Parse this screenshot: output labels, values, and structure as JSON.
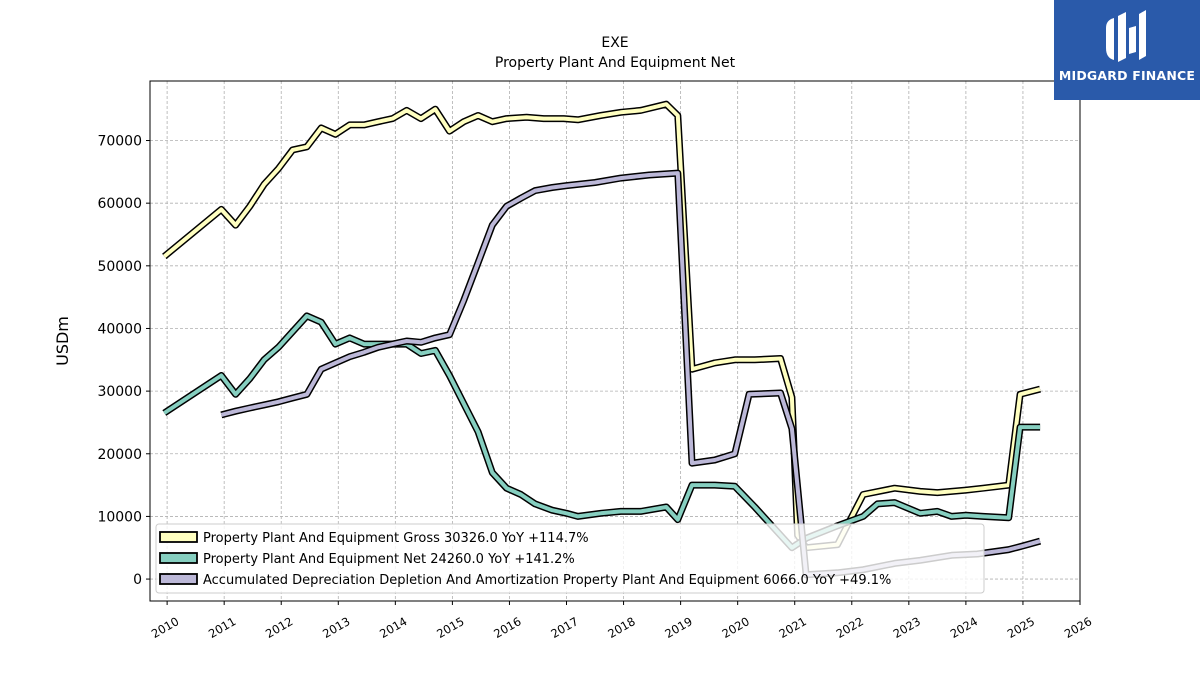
{
  "brand": {
    "name": "MIDGARD FINANCE",
    "bg": "#2a5aaa"
  },
  "chart_data": {
    "type": "line",
    "title": "EXE",
    "subtitle": "Property Plant And Equipment Net",
    "ylabel": "USDm",
    "xlabel": "",
    "xlim": [
      2009.7,
      2026.0
    ],
    "ylim": [
      -3500,
      79500
    ],
    "x_ticks": [
      "2010",
      "2011",
      "2012",
      "2013",
      "2014",
      "2015",
      "2016",
      "2017",
      "2018",
      "2019",
      "2020",
      "2021",
      "2022",
      "2023",
      "2024",
      "2025",
      "2026"
    ],
    "y_ticks": [
      0,
      10000,
      20000,
      30000,
      40000,
      50000,
      60000,
      70000
    ],
    "grid": true,
    "legend_position": "lower-left",
    "series": [
      {
        "name": "Property Plant And Equipment Gross",
        "legend_label": "Property Plant And Equipment Gross  30326.0 YoY +114.7%",
        "color": "#ffffc0",
        "points": [
          [
            2009.95,
            51500
          ],
          [
            2010.95,
            59000
          ],
          [
            2011.2,
            56500
          ],
          [
            2011.45,
            59500
          ],
          [
            2011.7,
            63000
          ],
          [
            2011.95,
            65500
          ],
          [
            2012.2,
            68500
          ],
          [
            2012.45,
            69000
          ],
          [
            2012.7,
            72000
          ],
          [
            2012.95,
            71000
          ],
          [
            2013.2,
            72500
          ],
          [
            2013.45,
            72500
          ],
          [
            2013.7,
            73000
          ],
          [
            2013.95,
            73500
          ],
          [
            2014.2,
            74800
          ],
          [
            2014.45,
            73500
          ],
          [
            2014.7,
            75000
          ],
          [
            2014.95,
            71500
          ],
          [
            2015.2,
            73000
          ],
          [
            2015.45,
            74000
          ],
          [
            2015.7,
            73000
          ],
          [
            2015.95,
            73500
          ],
          [
            2016.3,
            73700
          ],
          [
            2016.6,
            73500
          ],
          [
            2016.95,
            73500
          ],
          [
            2017.2,
            73300
          ],
          [
            2017.6,
            74000
          ],
          [
            2017.95,
            74500
          ],
          [
            2018.3,
            74800
          ],
          [
            2018.75,
            75800
          ],
          [
            2018.95,
            74000
          ],
          [
            2019.2,
            33500
          ],
          [
            2019.6,
            34500
          ],
          [
            2019.95,
            35000
          ],
          [
            2020.3,
            35000
          ],
          [
            2020.75,
            35200
          ],
          [
            2020.95,
            29000
          ],
          [
            2021.05,
            7000
          ],
          [
            2021.2,
            5000
          ],
          [
            2021.75,
            5500
          ],
          [
            2022.2,
            13500
          ],
          [
            2022.75,
            14500
          ],
          [
            2023.2,
            14000
          ],
          [
            2023.5,
            13800
          ],
          [
            2023.75,
            14000
          ],
          [
            2024.0,
            14200
          ],
          [
            2024.3,
            14500
          ],
          [
            2024.75,
            15000
          ],
          [
            2024.95,
            29500
          ],
          [
            2025.3,
            30326
          ]
        ]
      },
      {
        "name": "Property Plant And Equipment Net",
        "legend_label": "Property Plant And Equipment Net  24260.0 YoY +141.2%",
        "color": "#86cfc0",
        "points": [
          [
            2009.95,
            26500
          ],
          [
            2010.95,
            32500
          ],
          [
            2011.2,
            29500
          ],
          [
            2011.45,
            32000
          ],
          [
            2011.7,
            35000
          ],
          [
            2011.95,
            37000
          ],
          [
            2012.2,
            39500
          ],
          [
            2012.45,
            42000
          ],
          [
            2012.7,
            41000
          ],
          [
            2012.95,
            37500
          ],
          [
            2013.2,
            38500
          ],
          [
            2013.45,
            37500
          ],
          [
            2013.7,
            37500
          ],
          [
            2013.95,
            37500
          ],
          [
            2014.2,
            37500
          ],
          [
            2014.45,
            36000
          ],
          [
            2014.7,
            36500
          ],
          [
            2014.95,
            32500
          ],
          [
            2015.2,
            28000
          ],
          [
            2015.45,
            23500
          ],
          [
            2015.7,
            17000
          ],
          [
            2015.95,
            14500
          ],
          [
            2016.2,
            13500
          ],
          [
            2016.45,
            12000
          ],
          [
            2016.75,
            11000
          ],
          [
            2017.0,
            10500
          ],
          [
            2017.2,
            10000
          ],
          [
            2017.6,
            10500
          ],
          [
            2017.95,
            10800
          ],
          [
            2018.3,
            10800
          ],
          [
            2018.75,
            11500
          ],
          [
            2018.95,
            9500
          ],
          [
            2019.2,
            15000
          ],
          [
            2019.6,
            15000
          ],
          [
            2019.95,
            14800
          ],
          [
            2020.3,
            11500
          ],
          [
            2020.75,
            7000
          ],
          [
            2020.95,
            5000
          ],
          [
            2021.2,
            6500
          ],
          [
            2021.75,
            8500
          ],
          [
            2022.2,
            10000
          ],
          [
            2022.45,
            12000
          ],
          [
            2022.75,
            12200
          ],
          [
            2023.2,
            10500
          ],
          [
            2023.5,
            10800
          ],
          [
            2023.75,
            10000
          ],
          [
            2024.0,
            10200
          ],
          [
            2024.3,
            10000
          ],
          [
            2024.75,
            9800
          ],
          [
            2024.95,
            24260
          ],
          [
            2025.3,
            24260
          ]
        ]
      },
      {
        "name": "Accumulated Depreciation Depletion And Amortization Property Plant And Equipment",
        "legend_label": "Accumulated Depreciation Depletion And Amortization Property Plant And Equipment  6066.0 YoY +49.1%",
        "color": "#bcb8d8",
        "points": [
          [
            2010.95,
            26200
          ],
          [
            2011.2,
            26800
          ],
          [
            2011.45,
            27300
          ],
          [
            2011.7,
            27800
          ],
          [
            2011.95,
            28300
          ],
          [
            2012.2,
            28900
          ],
          [
            2012.45,
            29500
          ],
          [
            2012.7,
            33500
          ],
          [
            2012.95,
            34500
          ],
          [
            2013.2,
            35500
          ],
          [
            2013.45,
            36200
          ],
          [
            2013.7,
            37000
          ],
          [
            2013.95,
            37500
          ],
          [
            2014.2,
            38000
          ],
          [
            2014.45,
            37800
          ],
          [
            2014.7,
            38500
          ],
          [
            2014.95,
            39000
          ],
          [
            2015.2,
            44500
          ],
          [
            2015.45,
            50500
          ],
          [
            2015.7,
            56500
          ],
          [
            2015.95,
            59500
          ],
          [
            2016.2,
            60800
          ],
          [
            2016.45,
            62000
          ],
          [
            2016.75,
            62500
          ],
          [
            2017.0,
            62800
          ],
          [
            2017.5,
            63300
          ],
          [
            2017.95,
            64000
          ],
          [
            2018.45,
            64500
          ],
          [
            2018.95,
            64800
          ],
          [
            2019.2,
            18500
          ],
          [
            2019.6,
            19000
          ],
          [
            2019.95,
            20000
          ],
          [
            2020.2,
            29500
          ],
          [
            2020.75,
            29700
          ],
          [
            2020.95,
            24000
          ],
          [
            2021.2,
            700
          ],
          [
            2021.75,
            1000
          ],
          [
            2022.2,
            1500
          ],
          [
            2022.75,
            2500
          ],
          [
            2023.2,
            3000
          ],
          [
            2023.75,
            3800
          ],
          [
            2024.2,
            4000
          ],
          [
            2024.75,
            4700
          ],
          [
            2025.0,
            5300
          ],
          [
            2025.3,
            6066
          ]
        ]
      }
    ]
  }
}
